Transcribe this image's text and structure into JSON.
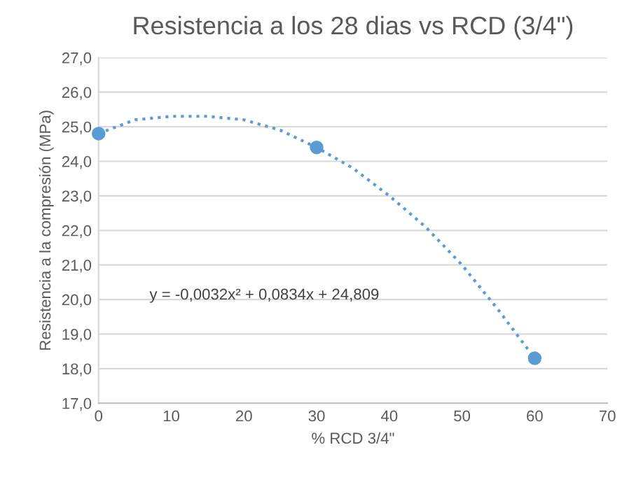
{
  "chart_data": {
    "type": "scatter",
    "title": "Resistencia a los 28 dias vs RCD (3/4\")",
    "xlabel": "% RCD 3/4\"",
    "ylabel": "Resistencia a la compresión (MPa)",
    "series": [
      {
        "color": "#5b9bd5",
        "marker": "circle",
        "x": [
          0,
          30,
          60
        ],
        "values": [
          24.8,
          24.4,
          18.3
        ]
      },
      {
        "type": "line",
        "color": "#5b9bd5",
        "line_style": "dotted",
        "marker": "none",
        "x": [
          0,
          5,
          10,
          15,
          20,
          25,
          30,
          35,
          40,
          45,
          50,
          55,
          60
        ],
        "values": [
          24.8,
          25.2,
          25.3,
          25.3,
          25.2,
          24.9,
          24.4,
          23.8,
          23.0,
          22.1,
          21.0,
          19.7,
          18.3
        ]
      }
    ],
    "annotations": [
      "y = -0,0032x² + 0,0834x + 24,809"
    ],
    "xlim": [
      0,
      70
    ],
    "xticks": [
      0,
      10,
      20,
      30,
      40,
      50,
      60,
      70
    ],
    "ylim": [
      17,
      27
    ],
    "yticks": [
      {
        "value": 17,
        "label": "17,0"
      },
      {
        "value": 18,
        "label": "18,0"
      },
      {
        "value": 19,
        "label": "19,0"
      },
      {
        "value": 20,
        "label": "20,0"
      },
      {
        "value": 21,
        "label": "21,0"
      },
      {
        "value": 22,
        "label": "22,0"
      },
      {
        "value": 23,
        "label": "23,0"
      },
      {
        "value": 24,
        "label": "24,0"
      },
      {
        "value": 25,
        "label": "25,0"
      },
      {
        "value": 26,
        "label": "26,0"
      },
      {
        "value": 27,
        "label": "27,0"
      }
    ],
    "grid": "y"
  }
}
